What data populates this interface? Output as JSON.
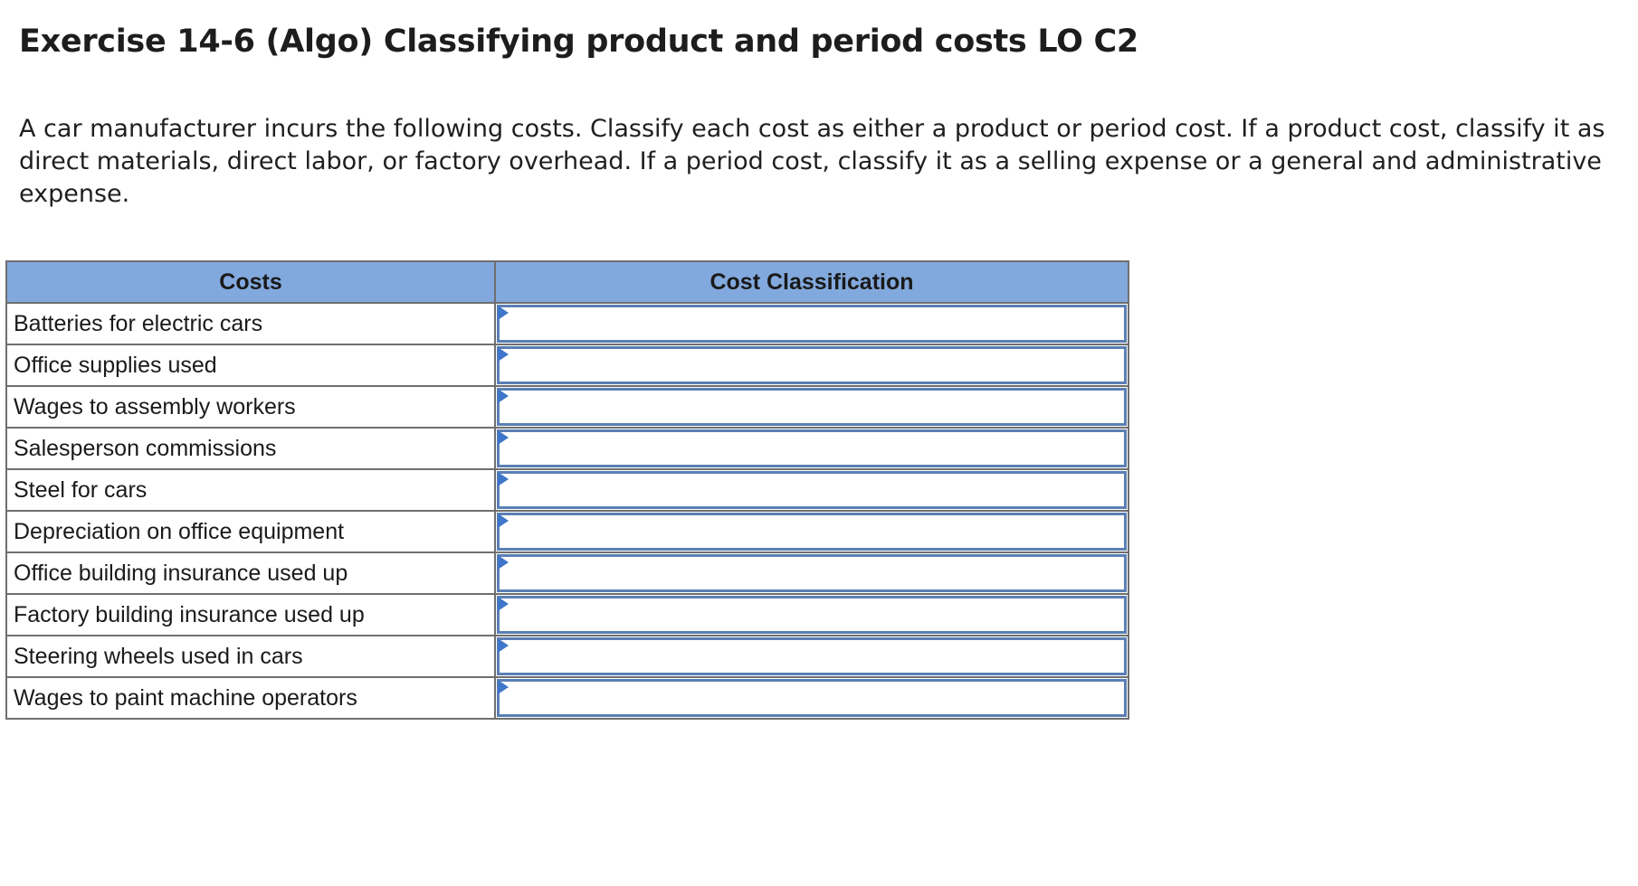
{
  "exercise": {
    "title": "Exercise 14-6 (Algo) Classifying product and period costs LO C2",
    "instructions": "A car manufacturer incurs the following costs. Classify each cost as either a product or period cost. If a product cost, classify it as direct materials, direct labor, or factory overhead. If a period cost, classify it as a selling expense or a general and administrative expense."
  },
  "table": {
    "headers": [
      "Costs",
      "Cost Classification"
    ],
    "header_color": "#82a9dd",
    "select_border_color": "#5a7fb5",
    "marker_color": "#3f76c9",
    "rows": [
      {
        "cost": "Batteries for electric cars",
        "classification": ""
      },
      {
        "cost": "Office supplies used",
        "classification": ""
      },
      {
        "cost": "Wages to assembly workers",
        "classification": ""
      },
      {
        "cost": "Salesperson commissions",
        "classification": ""
      },
      {
        "cost": "Steel for cars",
        "classification": ""
      },
      {
        "cost": "Depreciation on office equipment",
        "classification": ""
      },
      {
        "cost": "Office building insurance used up",
        "classification": ""
      },
      {
        "cost": "Factory building insurance used up",
        "classification": ""
      },
      {
        "cost": "Steering wheels used in cars",
        "classification": ""
      },
      {
        "cost": "Wages to paint machine operators",
        "classification": ""
      }
    ]
  }
}
